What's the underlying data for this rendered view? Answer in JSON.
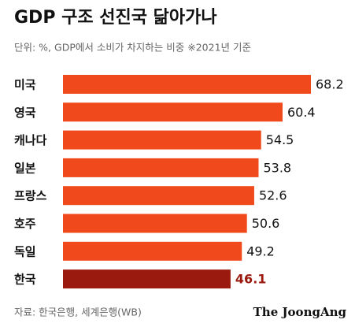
{
  "chart_data": {
    "type": "bar",
    "orientation": "horizontal",
    "title": "GDP 구조 선진국 닮아가나",
    "subtitle": "단위: %, GDP에서 소비가 차지하는 비중  ※2021년 기준",
    "categories": [
      "미국",
      "영국",
      "캐나다",
      "일본",
      "프랑스",
      "호주",
      "독일",
      "한국"
    ],
    "values": [
      68.2,
      60.4,
      54.5,
      53.8,
      52.6,
      50.6,
      49.2,
      46.1
    ],
    "colors": [
      "#f04a1c",
      "#f04a1c",
      "#f04a1c",
      "#f04a1c",
      "#f04a1c",
      "#f04a1c",
      "#f04a1c",
      "#9a1a0f"
    ],
    "source": "자료: 한국은행, 세계은행(WB)",
    "logo": "The JoongAng"
  }
}
